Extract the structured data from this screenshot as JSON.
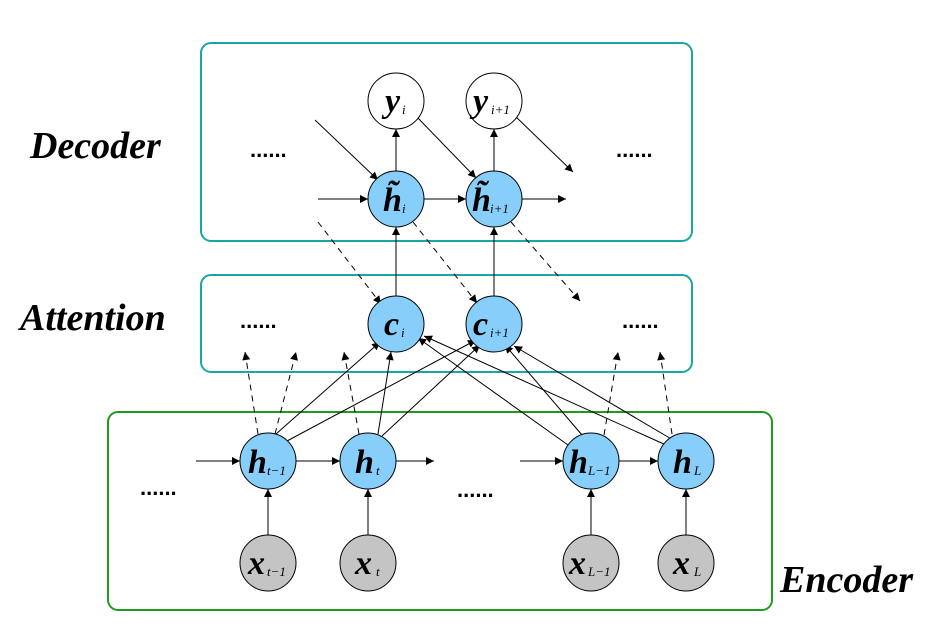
{
  "sections": {
    "decoder": "Decoder",
    "attention": "Attention",
    "encoder": "Encoder"
  },
  "colors": {
    "decoder_box": "#1aa6a6",
    "attention_box": "#1aa6a6",
    "encoder_box": "#1f9a1f",
    "hidden_node": "#87cefa",
    "input_node": "#c4c4c4",
    "output_node": "#ffffff"
  },
  "ellipsis": "......",
  "nodes": {
    "y_i": {
      "var": "y",
      "sub": "i",
      "kind": "output"
    },
    "y_i1": {
      "var": "y",
      "sub": "i+1",
      "kind": "output"
    },
    "ht_i": {
      "var": "h̃",
      "sub": "i",
      "kind": "hidden"
    },
    "ht_i1": {
      "var": "h̃",
      "sub": "i+1",
      "kind": "hidden"
    },
    "c_i": {
      "var": "c",
      "sub": "i",
      "kind": "hidden"
    },
    "c_i1": {
      "var": "c",
      "sub": "i+1",
      "kind": "hidden"
    },
    "h_tm1": {
      "var": "h",
      "sub": "t−1",
      "kind": "hidden"
    },
    "h_t": {
      "var": "h",
      "sub": "t",
      "kind": "hidden"
    },
    "h_Lm1": {
      "var": "h",
      "sub": "L−1",
      "kind": "hidden"
    },
    "h_L": {
      "var": "h",
      "sub": "L",
      "kind": "hidden"
    },
    "x_tm1": {
      "var": "x",
      "sub": "t−1",
      "kind": "input"
    },
    "x_t": {
      "var": "x",
      "sub": "t",
      "kind": "input"
    },
    "x_Lm1": {
      "var": "x",
      "sub": "L−1",
      "kind": "input"
    },
    "x_L": {
      "var": "x",
      "sub": "L",
      "kind": "input"
    }
  }
}
